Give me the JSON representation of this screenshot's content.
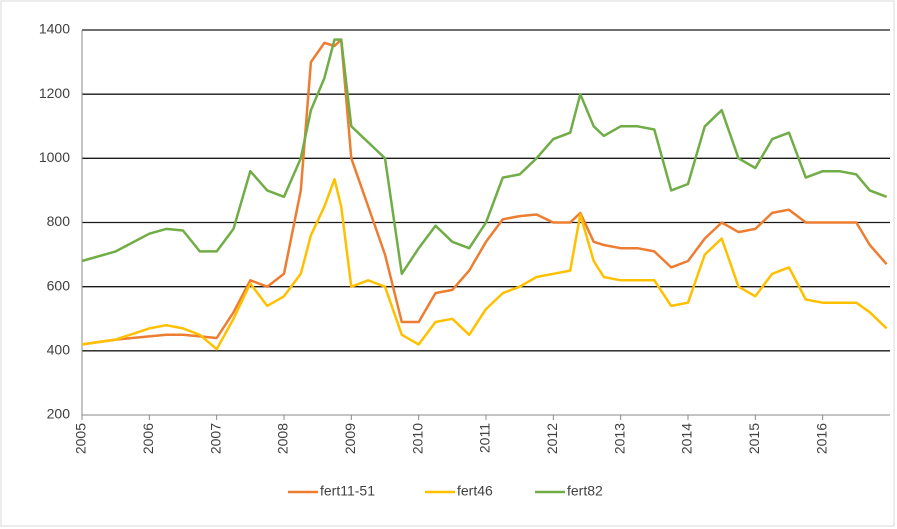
{
  "chart_data": {
    "type": "line",
    "x": [
      2005.0,
      2005.5,
      2006.0,
      2006.25,
      2006.5,
      2006.75,
      2007.0,
      2007.25,
      2007.5,
      2007.75,
      2008.0,
      2008.25,
      2008.4,
      2008.6,
      2008.75,
      2008.85,
      2009.0,
      2009.25,
      2009.5,
      2009.75,
      2010.0,
      2010.25,
      2010.5,
      2010.75,
      2011.0,
      2011.25,
      2011.5,
      2011.75,
      2012.0,
      2012.25,
      2012.4,
      2012.6,
      2012.75,
      2013.0,
      2013.25,
      2013.5,
      2013.75,
      2014.0,
      2014.25,
      2014.5,
      2014.75,
      2015.0,
      2015.25,
      2015.5,
      2015.75,
      2016.0,
      2016.25,
      2016.5,
      2016.7,
      2016.95
    ],
    "series": [
      {
        "name": "fert11-51",
        "color": "#ed7d31",
        "values": [
          420,
          435,
          445,
          450,
          450,
          445,
          440,
          520,
          620,
          600,
          640,
          900,
          1300,
          1360,
          1350,
          1370,
          1000,
          850,
          700,
          490,
          490,
          580,
          590,
          650,
          740,
          810,
          820,
          825,
          800,
          800,
          830,
          740,
          730,
          720,
          720,
          710,
          660,
          680,
          750,
          800,
          770,
          780,
          830,
          840,
          800,
          800,
          800,
          800,
          730,
          670
        ]
      },
      {
        "name": "fert46",
        "color": "#ffc000",
        "values": [
          420,
          435,
          470,
          480,
          470,
          450,
          405,
          500,
          610,
          540,
          570,
          640,
          760,
          850,
          935,
          850,
          600,
          620,
          600,
          450,
          420,
          490,
          500,
          450,
          530,
          580,
          600,
          630,
          640,
          650,
          825,
          680,
          630,
          620,
          620,
          620,
          540,
          550,
          700,
          750,
          600,
          570,
          640,
          660,
          560,
          550,
          550,
          550,
          520,
          470
        ]
      },
      {
        "name": "fert82",
        "color": "#70ad47",
        "values": [
          680,
          710,
          765,
          780,
          775,
          710,
          710,
          780,
          960,
          900,
          880,
          1000,
          1150,
          1250,
          1370,
          1370,
          1100,
          1050,
          1000,
          640,
          720,
          790,
          740,
          720,
          800,
          940,
          950,
          1000,
          1060,
          1080,
          1200,
          1100,
          1070,
          1100,
          1100,
          1090,
          900,
          920,
          1100,
          1150,
          1000,
          970,
          1060,
          1080,
          940,
          960,
          960,
          950,
          900,
          880
        ]
      }
    ],
    "xlim": [
      2005,
      2017
    ],
    "xticks": [
      2005,
      2006,
      2007,
      2008,
      2009,
      2010,
      2011,
      2012,
      2013,
      2014,
      2015,
      2016
    ],
    "ylim": [
      200,
      1400
    ],
    "yticks": [
      200,
      400,
      600,
      800,
      1000,
      1200,
      1400
    ],
    "grid": true,
    "legend": "bottom"
  }
}
